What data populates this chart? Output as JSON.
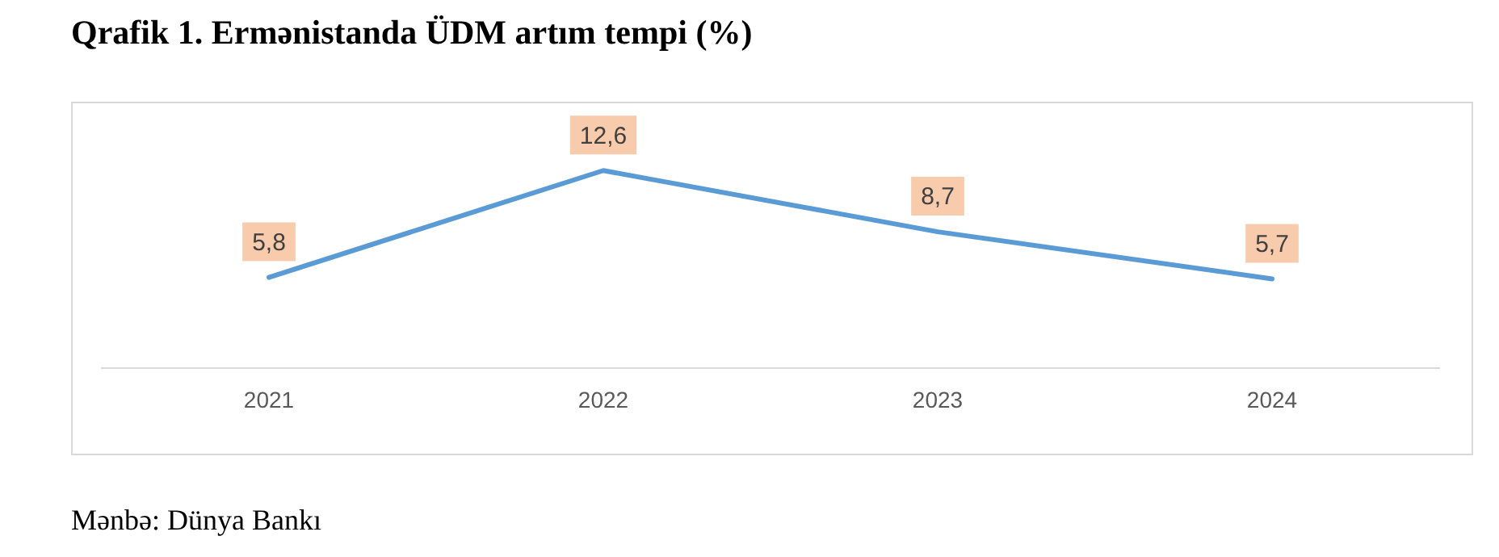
{
  "chart_data": {
    "type": "line",
    "title": "Qrafik 1. Ermənistanda ÜDM artım tempi (%)",
    "categories": [
      "2021",
      "2022",
      "2023",
      "2024"
    ],
    "series": [
      {
        "color": "#5b9bd5",
        "values": [
          5.8,
          12.6,
          8.7,
          5.7
        ],
        "value_labels": [
          "5,8",
          "12,6",
          "8,7",
          "5,7"
        ]
      }
    ],
    "tick_labels": "x",
    "grid": false,
    "legend": false,
    "marker": "none",
    "line_style": "solid",
    "annotations": [
      "Mənbə: Dünya Bankı"
    ]
  }
}
